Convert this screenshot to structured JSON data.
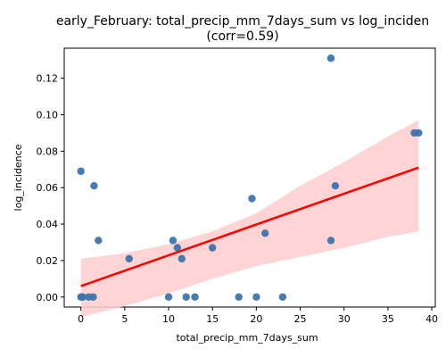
{
  "chart_data": {
    "type": "scatter",
    "title": "early_February: total_precip_mm_7days_sum vs log_inciden",
    "subtitle": "(corr=0.59)",
    "xlabel": "total_precip_mm_7days_sum",
    "ylabel": "log_incidence",
    "xlim": [
      -1.9,
      40.4
    ],
    "ylim": [
      -0.0055,
      0.1365
    ],
    "xticks": [
      0,
      5,
      10,
      15,
      20,
      25,
      30,
      35,
      40
    ],
    "yticks": [
      0.0,
      0.02,
      0.04,
      0.06,
      0.08,
      0.1,
      0.12
    ],
    "xtick_labels": [
      "0",
      "5",
      "10",
      "15",
      "20",
      "25",
      "30",
      "35",
      "40"
    ],
    "ytick_labels": [
      "0.00",
      "0.02",
      "0.04",
      "0.06",
      "0.08",
      "0.10",
      "0.12"
    ],
    "grid": false,
    "points": [
      {
        "x": 0.0,
        "y": 0.069
      },
      {
        "x": 0.0,
        "y": 0.0
      },
      {
        "x": 0.1,
        "y": 0.0
      },
      {
        "x": 0.2,
        "y": 0.0
      },
      {
        "x": 0.9,
        "y": 0.0
      },
      {
        "x": 1.4,
        "y": 0.0
      },
      {
        "x": 1.5,
        "y": 0.061
      },
      {
        "x": 2.0,
        "y": 0.031
      },
      {
        "x": 5.5,
        "y": 0.021
      },
      {
        "x": 10.0,
        "y": 0.0
      },
      {
        "x": 10.5,
        "y": 0.031
      },
      {
        "x": 11.0,
        "y": 0.027
      },
      {
        "x": 11.5,
        "y": 0.021
      },
      {
        "x": 12.0,
        "y": 0.0
      },
      {
        "x": 13.0,
        "y": 0.0
      },
      {
        "x": 15.0,
        "y": 0.027
      },
      {
        "x": 18.0,
        "y": 0.0
      },
      {
        "x": 19.5,
        "y": 0.054
      },
      {
        "x": 20.0,
        "y": 0.0
      },
      {
        "x": 21.0,
        "y": 0.035
      },
      {
        "x": 23.0,
        "y": 0.0
      },
      {
        "x": 28.5,
        "y": 0.131
      },
      {
        "x": 28.5,
        "y": 0.031
      },
      {
        "x": 29.0,
        "y": 0.061
      },
      {
        "x": 38.0,
        "y": 0.09
      },
      {
        "x": 38.5,
        "y": 0.09
      }
    ],
    "regression": {
      "x": [
        0.0,
        38.5
      ],
      "y": [
        0.006,
        0.071
      ]
    },
    "confidence_band": {
      "x": [
        0.0,
        5.0,
        10.0,
        15.0,
        20.0,
        25.0,
        30.0,
        35.0,
        38.5
      ],
      "upper": [
        0.021,
        0.024,
        0.029,
        0.036,
        0.046,
        0.061,
        0.074,
        0.088,
        0.097
      ],
      "lower": [
        -0.011,
        -0.005,
        0.002,
        0.01,
        0.017,
        0.022,
        0.027,
        0.033,
        0.036
      ]
    },
    "colors": {
      "point": "#3b75af",
      "line": "#ff0000",
      "band": "#ffcccc"
    }
  }
}
